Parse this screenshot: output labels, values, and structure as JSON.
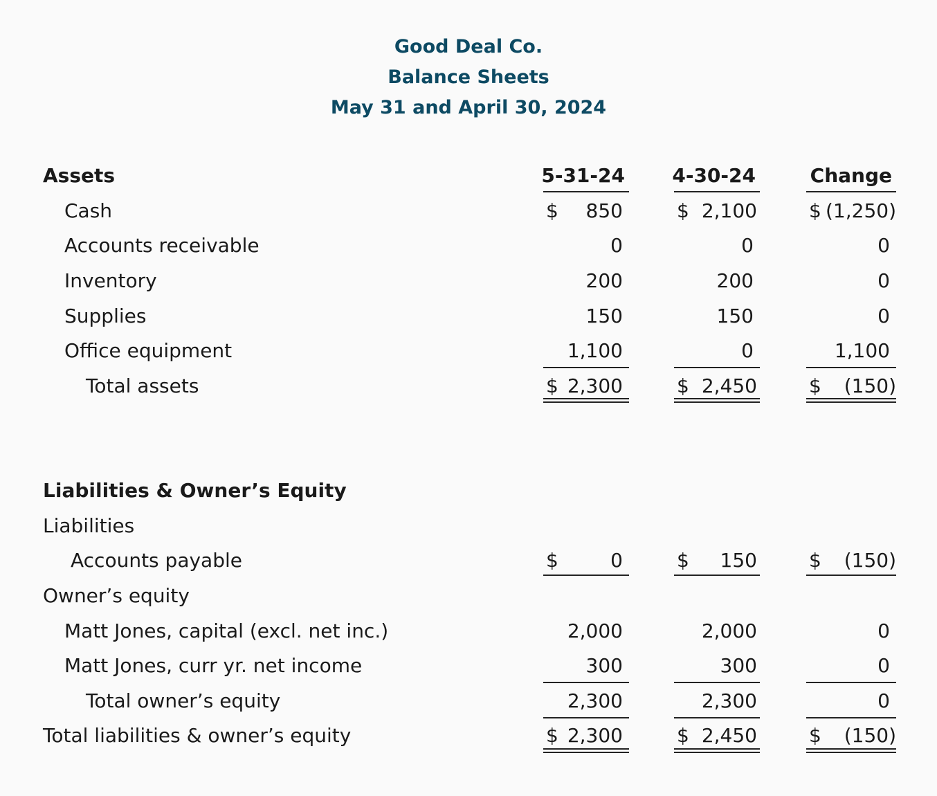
{
  "header": {
    "company": "Good Deal Co.",
    "statement": "Balance Sheets",
    "dates": "May 31 and April 30, 2024"
  },
  "columns": [
    "5-31-24",
    "4-30-24",
    "Change"
  ],
  "assets": {
    "heading": "Assets",
    "rows": [
      {
        "label": "Cash",
        "values": [
          {
            "d": "$",
            "v": "850"
          },
          {
            "d": "$",
            "v": "2,100"
          },
          {
            "d": "$",
            "v": "(1,250)"
          }
        ]
      },
      {
        "label": "Accounts receivable",
        "values": [
          {
            "d": "",
            "v": "0"
          },
          {
            "d": "",
            "v": "0"
          },
          {
            "d": "",
            "v": "0"
          }
        ]
      },
      {
        "label": "Inventory",
        "values": [
          {
            "d": "",
            "v": "200"
          },
          {
            "d": "",
            "v": "200"
          },
          {
            "d": "",
            "v": "0"
          }
        ]
      },
      {
        "label": "Supplies",
        "values": [
          {
            "d": "",
            "v": "150"
          },
          {
            "d": "",
            "v": "150"
          },
          {
            "d": "",
            "v": "0"
          }
        ]
      },
      {
        "label": "Office equipment",
        "values": [
          {
            "d": "",
            "v": "1,100"
          },
          {
            "d": "",
            "v": "0"
          },
          {
            "d": "",
            "v": "1,100"
          }
        ]
      }
    ],
    "total": {
      "label": "Total assets",
      "values": [
        {
          "d": "$",
          "v": "2,300"
        },
        {
          "d": "$",
          "v": "2,450"
        },
        {
          "d": "$",
          "v": "(150)"
        }
      ]
    }
  },
  "liabilities_equity": {
    "heading": "Liabilities & Owner’s Equity",
    "liabilities_label": "Liabilities",
    "accounts_payable": {
      "label": "Accounts payable",
      "values": [
        {
          "d": "$",
          "v": "0"
        },
        {
          "d": "$",
          "v": "150"
        },
        {
          "d": "$",
          "v": "(150)"
        }
      ]
    },
    "equity_label": "Owner’s equity",
    "equity_rows": [
      {
        "label": "Matt Jones, capital (excl. net inc.)",
        "values": [
          {
            "d": "",
            "v": "2,000"
          },
          {
            "d": "",
            "v": "2,000"
          },
          {
            "d": "",
            "v": "0"
          }
        ]
      },
      {
        "label": "Matt Jones, curr yr. net income",
        "values": [
          {
            "d": "",
            "v": "300"
          },
          {
            "d": "",
            "v": "300"
          },
          {
            "d": "",
            "v": "0"
          }
        ]
      }
    ],
    "total_equity": {
      "label": "Total owner’s equity",
      "values": [
        {
          "d": "",
          "v": "2,300"
        },
        {
          "d": "",
          "v": "2,300"
        },
        {
          "d": "",
          "v": "0"
        }
      ]
    },
    "grand_total": {
      "label": "Total liabilities & owner’s equity",
      "values": [
        {
          "d": "$",
          "v": "2,300"
        },
        {
          "d": "$",
          "v": "2,450"
        },
        {
          "d": "$",
          "v": "(150)"
        }
      ]
    }
  }
}
